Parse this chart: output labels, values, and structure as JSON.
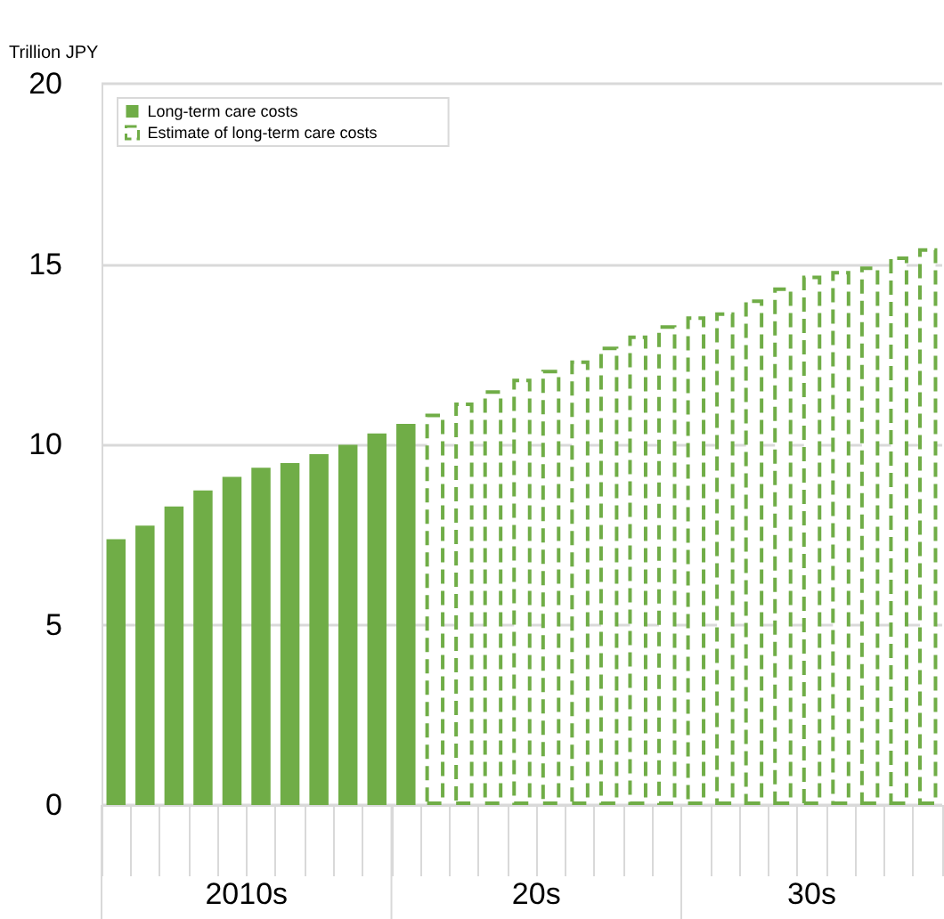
{
  "chart_data": {
    "type": "bar",
    "ylabel": "Trillion JPY",
    "categories": [
      null,
      null,
      null,
      null,
      null,
      null,
      null,
      null,
      null,
      null,
      null,
      null,
      null,
      null,
      null,
      null,
      null,
      null,
      null,
      null,
      null,
      null,
      null,
      null,
      null,
      null,
      null,
      null,
      null
    ],
    "series": [
      {
        "name": "Long-term care costs",
        "color": "#70ad47",
        "values": [
          7.37,
          7.75,
          8.28,
          8.72,
          9.1,
          9.35,
          9.48,
          9.73,
          9.99,
          10.3,
          10.57,
          null,
          null,
          null,
          null,
          null,
          null,
          null,
          null,
          null,
          null,
          null,
          null,
          null,
          null,
          null,
          null,
          null,
          null
        ]
      },
      {
        "name": "Estimate of long-term care costs",
        "color": "#70ad47",
        "line_style": "dashed",
        "values": [
          null,
          null,
          null,
          null,
          null,
          null,
          null,
          null,
          null,
          null,
          null,
          10.85,
          11.16,
          11.5,
          11.82,
          12.07,
          12.33,
          12.71,
          13.02,
          13.3,
          13.55,
          13.66,
          14.02,
          14.35,
          14.68,
          14.81,
          14.93,
          15.21,
          15.44
        ]
      }
    ],
    "annotations": [
      "2010s",
      "20s",
      "30s"
    ],
    "ylim": [
      0,
      20
    ],
    "yticks": [
      0,
      5,
      10,
      15,
      20
    ],
    "grid": "y",
    "legend": "top left"
  }
}
